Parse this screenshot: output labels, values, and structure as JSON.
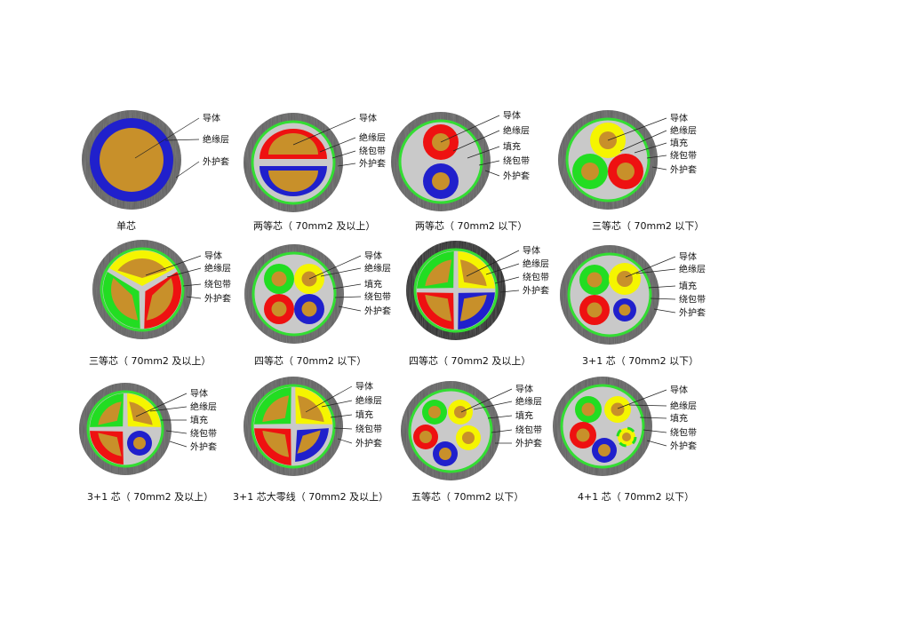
{
  "colors": {
    "sheath": "#5b5b5b",
    "filler": "#c9c9c9",
    "wrap": "#33dd33",
    "conductor": "#c8902a",
    "blue": "#2020cc",
    "red": "#ee1111",
    "yellow": "#f5f500",
    "green": "#22dd22",
    "ink": "#111111"
  },
  "diagrams": [
    {
      "id": "single",
      "caption": "单芯",
      "labels": [
        "导体",
        "绝缘层",
        "外护套"
      ]
    },
    {
      "id": "two-large",
      "caption": "两等芯（ 70mm2 及以上）",
      "labels": [
        "导体",
        "绝缘层",
        "绕包带",
        "外护套"
      ]
    },
    {
      "id": "two-small",
      "caption": "两等芯（ 70mm2 以下）",
      "labels": [
        "导体",
        "绝缘层",
        "填充",
        "绕包带",
        "外护套"
      ]
    },
    {
      "id": "three-small",
      "caption": "三等芯（ 70mm2 以下）",
      "labels": [
        "导体",
        "绝缘层",
        "填充",
        "绕包带",
        "外护套"
      ]
    },
    {
      "id": "three-large",
      "caption": "三等芯（ 70mm2 及以上）",
      "labels": [
        "导体",
        "绝缘层",
        "绕包带",
        "外护套"
      ]
    },
    {
      "id": "four-small",
      "caption": "四等芯（ 70mm2 以下）",
      "labels": [
        "导体",
        "绝缘层",
        "填充",
        "绕包带",
        "外护套"
      ]
    },
    {
      "id": "four-large",
      "caption": "四等芯（ 70mm2 及以上）",
      "labels": [
        "导体",
        "绝缘层",
        "绕包带",
        "外护套"
      ]
    },
    {
      "id": "three-plus-one-small",
      "caption": "3+1 芯（ 70mm2 以下）",
      "labels": [
        "导体",
        "绝缘层",
        "填充",
        "绕包带",
        "外护套"
      ]
    },
    {
      "id": "three-plus-one-large",
      "caption": "3+1 芯（ 70mm2 及以上）",
      "labels": [
        "导体",
        "绝缘层",
        "填充",
        "绕包带",
        "外护套"
      ]
    },
    {
      "id": "three-plus-one-neutral",
      "caption": "3+1 芯大零线（ 70mm2 及以上）",
      "labels": [
        "导体",
        "绝缘层",
        "填充",
        "绕包带",
        "外护套"
      ]
    },
    {
      "id": "five-small",
      "caption": "五等芯（ 70mm2 以下）",
      "labels": [
        "导体",
        "绝缘层",
        "填充",
        "绕包带",
        "外护套"
      ]
    },
    {
      "id": "four-plus-one-small",
      "caption": "4+1 芯（ 70mm2 以下）",
      "labels": [
        "导体",
        "绝缘层",
        "填充",
        "绕包带",
        "外护套"
      ]
    }
  ]
}
